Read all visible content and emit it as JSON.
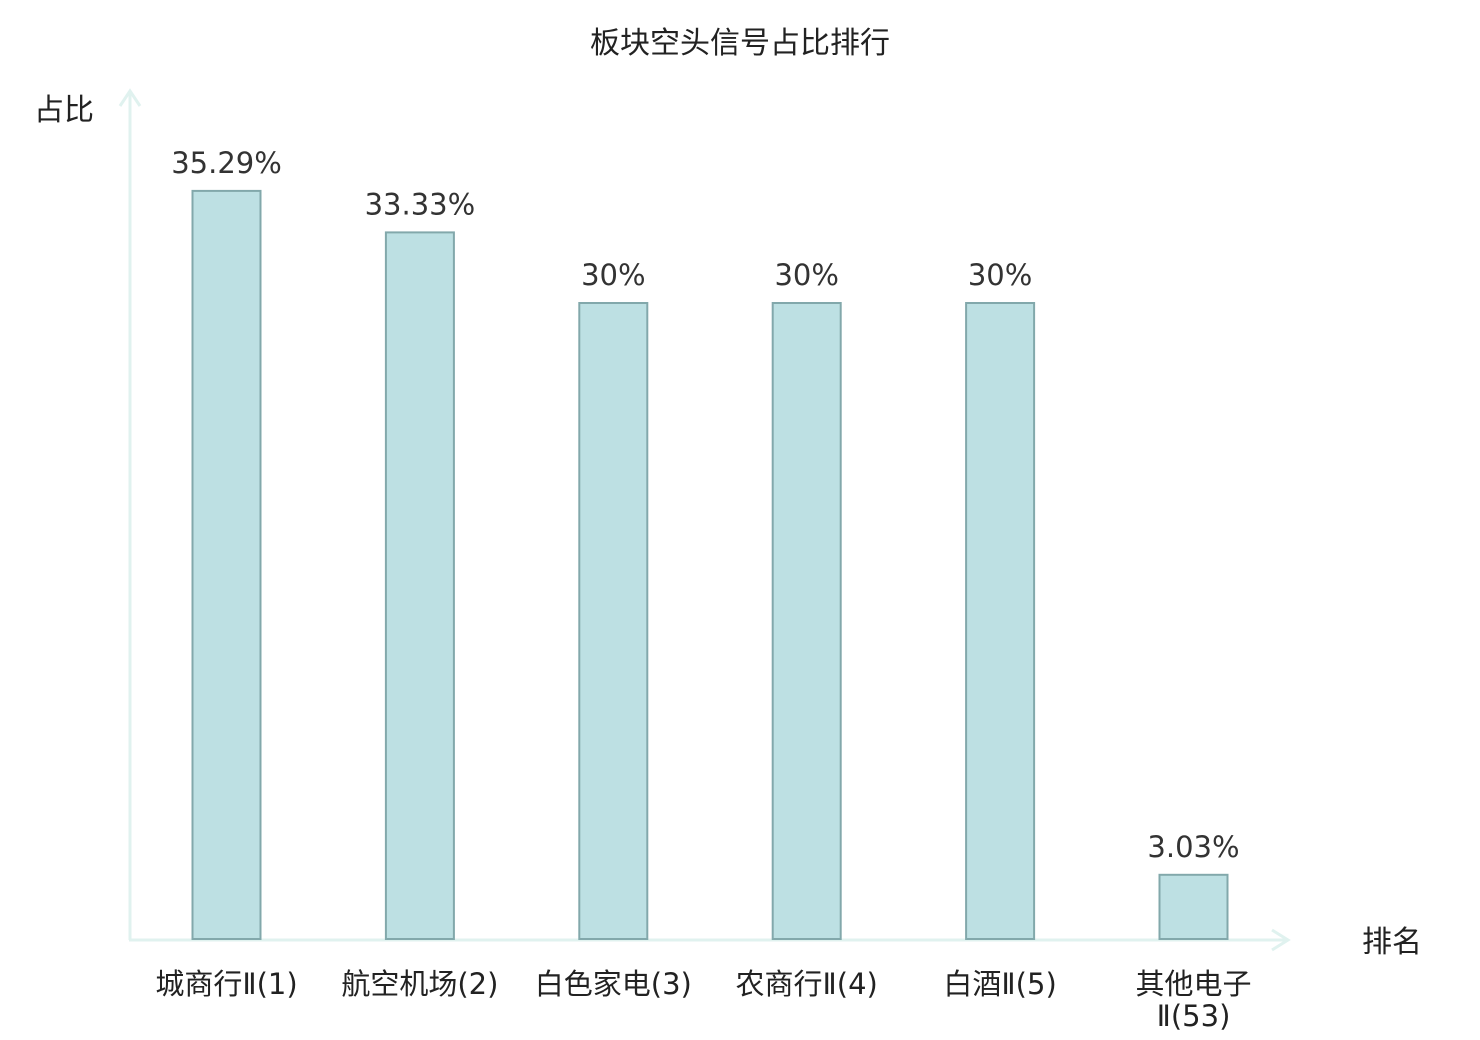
{
  "chart_data": {
    "type": "bar",
    "title": "板块空头信号占比排行",
    "ylabel": "占比",
    "xlabel": "排名",
    "ylim": [
      0,
      40
    ],
    "grid": false,
    "categories": [
      "城商行Ⅱ(1)",
      "航空机场(2)",
      "白色家电(3)",
      "农商行Ⅱ(4)",
      "白酒Ⅱ(5)",
      "其他电子Ⅱ(53)"
    ],
    "category_lines": [
      [
        "城商行Ⅱ(1)"
      ],
      [
        "航空机场(2)"
      ],
      [
        "白色家电(3)"
      ],
      [
        "农商行Ⅱ(4)"
      ],
      [
        "白酒Ⅱ(5)"
      ],
      [
        "其他电子",
        "Ⅱ(53)"
      ]
    ],
    "values": [
      35.29,
      33.33,
      30,
      30,
      30,
      3.03
    ],
    "value_labels": [
      "35.29%",
      "33.33%",
      "30%",
      "30%",
      "30%",
      "3.03%"
    ],
    "highlight_index": 5,
    "colors": {
      "bar_fill": "#bde0e3",
      "bar_stroke": "#82a8ab",
      "axis": "#e0f2ef",
      "highlight_text": "#e8141b",
      "text": "#222222"
    }
  }
}
